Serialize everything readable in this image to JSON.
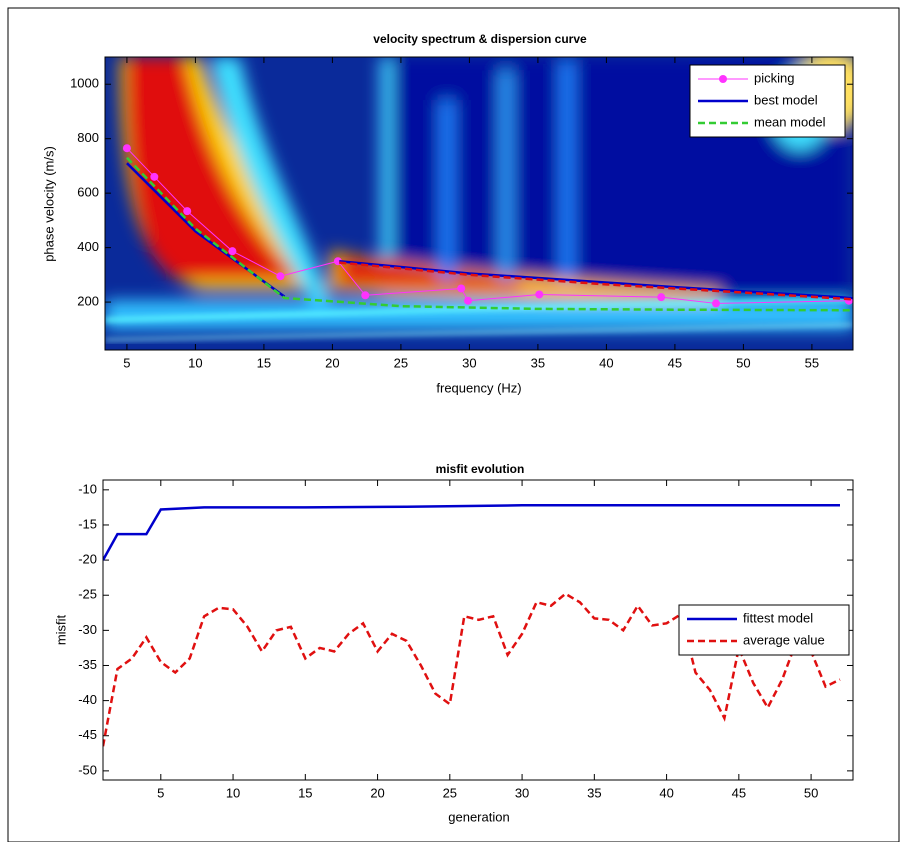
{
  "chart_data": [
    {
      "type": "line",
      "title": "velocity spectrum & dispersion curve",
      "xlabel": "frequency (Hz)",
      "ylabel": "phase velocity (m/s)",
      "xlim": [
        3.4,
        58.0
      ],
      "xticks": [
        5,
        10,
        15,
        20,
        25,
        30,
        35,
        40,
        45,
        50,
        55
      ],
      "ylim": [
        24,
        1100
      ],
      "yticks": [
        200,
        400,
        600,
        800,
        1000
      ],
      "legend": "northeast",
      "series": [
        {
          "name": "picking",
          "color": "#ff33ff",
          "linestyle": "solid",
          "marker": "circle",
          "x": [
            5,
            7,
            9.4,
            12.7,
            16.2,
            20.4,
            22.4,
            29.4,
            29.9,
            35.1,
            44,
            48,
            57.7
          ],
          "values": [
            765,
            660,
            534,
            387,
            295,
            350,
            225,
            250,
            205,
            228,
            218,
            195,
            205
          ]
        },
        {
          "name": "best model",
          "color": "#0000cc",
          "linestyle": "solid",
          "x": [
            5,
            10,
            16.5,
            null,
            20.5,
            30,
            45,
            58
          ],
          "values": [
            710,
            460,
            220,
            null,
            350,
            305,
            255,
            215
          ]
        },
        {
          "name": "mean model",
          "color": "#33cc33",
          "linestyle": "dashed",
          "x": [
            5,
            10,
            16.5,
            25,
            35,
            45,
            58
          ],
          "values": [
            730,
            470,
            215,
            185,
            175,
            172,
            170
          ]
        },
        {
          "color": "#e01010",
          "linestyle": "dashed",
          "x": [
            20.5,
            30,
            40,
            50,
            58
          ],
          "values": [
            345,
            300,
            265,
            235,
            210
          ]
        }
      ]
    },
    {
      "type": "line",
      "title": "misfit evolution",
      "xlabel": "generation",
      "ylabel": "misfit",
      "xlim": [
        1,
        52.9
      ],
      "xticks": [
        5,
        10,
        15,
        20,
        25,
        30,
        35,
        40,
        45,
        50
      ],
      "ylim": [
        -51.3,
        -8.6
      ],
      "yticks": [
        -50,
        -45,
        -40,
        -35,
        -30,
        -25,
        -20,
        -15,
        -10
      ],
      "legend": "east",
      "series": [
        {
          "name": "fittest model",
          "color": "#0000cc",
          "linestyle": "solid",
          "x": [
            1,
            2,
            4,
            5,
            8,
            15,
            22,
            30,
            52
          ],
          "values": [
            -20,
            -16.3,
            -16.3,
            -12.8,
            -12.5,
            -12.5,
            -12.4,
            -12.2,
            -12.2
          ]
        },
        {
          "name": "average value",
          "color": "#e01010",
          "linestyle": "dashed",
          "x": [
            1,
            2,
            3,
            4,
            5,
            6,
            7,
            8,
            9,
            10,
            11,
            12,
            13,
            14,
            15,
            16,
            17,
            18,
            19,
            20,
            21,
            22,
            23,
            24,
            25,
            26,
            27,
            28,
            29,
            30,
            31,
            32,
            33,
            34,
            35,
            36,
            37,
            38,
            39,
            40,
            41,
            42,
            43,
            44,
            45,
            46,
            47,
            48,
            49,
            50,
            51,
            52
          ],
          "values": [
            -46.5,
            -35.5,
            -34,
            -31,
            -34.5,
            -36,
            -34,
            -28,
            -26.8,
            -27,
            -29.5,
            -33,
            -30,
            -29.5,
            -34,
            -32.5,
            -33,
            -30.5,
            -29,
            -33,
            -30.5,
            -31.5,
            -35,
            -39,
            -40.5,
            -28,
            -28.5,
            -28,
            -33.5,
            -30.5,
            -26,
            -26.5,
            -24.8,
            -26,
            -28.3,
            -28.5,
            -30,
            -26.5,
            -29.3,
            -29,
            -27.7,
            -36,
            -38.5,
            -42.5,
            -32.5,
            -37.5,
            -41,
            -37,
            -31.5,
            -33,
            -38,
            -37
          ]
        }
      ]
    }
  ]
}
